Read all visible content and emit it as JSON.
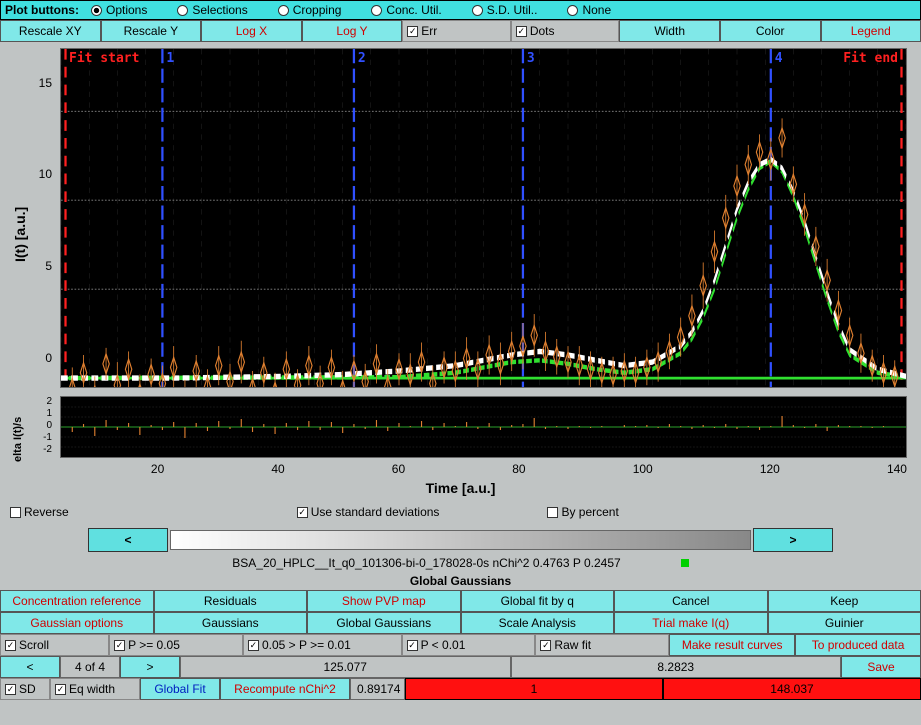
{
  "toolbar1": {
    "label": "Plot buttons:",
    "radios": [
      {
        "label": "Options",
        "selected": true
      },
      {
        "label": "Selections",
        "selected": false
      },
      {
        "label": "Cropping",
        "selected": false
      },
      {
        "label": "Conc. Util.",
        "selected": false
      },
      {
        "label": "S.D. Util..",
        "selected": false
      },
      {
        "label": "None",
        "selected": false
      }
    ]
  },
  "toolbar2": {
    "rescale_xy": "Rescale XY",
    "rescale_y": "Rescale Y",
    "log_x": "Log X",
    "log_y": "Log Y",
    "err": "Err",
    "dots": "Dots",
    "width": "Width",
    "color": "Color",
    "legend": "Legend"
  },
  "chart": {
    "ylabel": "I(t) [a.u.]",
    "yticks": [
      "15",
      "10",
      "5",
      "0"
    ],
    "xticks": [
      "20",
      "40",
      "60",
      "80",
      "100",
      "120",
      "140"
    ],
    "xlabel": "Time [a.u.]",
    "fit_start": "Fit start",
    "fit_end": "Fit end",
    "cursor_labels": [
      "1",
      "2",
      "3",
      "4"
    ]
  },
  "chart2": {
    "ylabel": "elta I(t)/s",
    "yticks": [
      "2",
      "1",
      "0",
      "-1",
      "-2"
    ]
  },
  "mid": {
    "reverse": "Reverse",
    "use_sd": "Use standard deviations",
    "by_percent": "By percent"
  },
  "arrows": {
    "left": "<",
    "right": ">"
  },
  "info": "BSA_20_HPLC__It_q0_101306-bi-0_178028-0s nChi^2 0.4763 P 0.2457",
  "section": "Global Gaussians",
  "btns1": [
    {
      "t": "Concentration reference",
      "c": "red-text"
    },
    {
      "t": "Residuals",
      "c": ""
    },
    {
      "t": "Show PVP map",
      "c": "red-text"
    },
    {
      "t": "Global fit by q",
      "c": ""
    },
    {
      "t": "Cancel",
      "c": ""
    },
    {
      "t": "Keep",
      "c": ""
    }
  ],
  "btns2": [
    {
      "t": "Gaussian options",
      "c": "red-text"
    },
    {
      "t": "Gaussians",
      "c": ""
    },
    {
      "t": "Global Gaussians",
      "c": ""
    },
    {
      "t": "Scale Analysis",
      "c": ""
    },
    {
      "t": "Trial make I(q)",
      "c": "red-text"
    },
    {
      "t": "Guinier",
      "c": ""
    }
  ],
  "filters": {
    "scroll": "Scroll",
    "p1": "P >= 0.05",
    "p2": "0.05 > P >= 0.01",
    "p3": "P < 0.01",
    "raw": "Raw fit",
    "make": "Make result curves",
    "prod": "To produced data"
  },
  "nav": {
    "left": "<",
    "right": ">",
    "idx": "4 of 4",
    "v1": "125.077",
    "v2": "8.2823",
    "save": "Save"
  },
  "bottom": {
    "sd": "SD",
    "eqw": "Eq width",
    "global": "Global Fit",
    "recomp": "Recompute nChi^2",
    "val": "0.89174",
    "red1": "1",
    "red2": "148.037"
  },
  "colors": {
    "data": "#e08030",
    "fit": "#ffffff",
    "gauss": "#30e030",
    "cursor": "#3050ff",
    "bound": "#ff2020"
  },
  "main_data": {
    "x": [
      2,
      4,
      6,
      8,
      10,
      12,
      14,
      16,
      18,
      20,
      22,
      24,
      26,
      28,
      30,
      32,
      34,
      36,
      38,
      40,
      42,
      44,
      46,
      48,
      50,
      52,
      54,
      56,
      58,
      60,
      62,
      64,
      66,
      68,
      70,
      72,
      74,
      76,
      78,
      80,
      82,
      84,
      86,
      88,
      90,
      92,
      94,
      96,
      98,
      100,
      102,
      104,
      106,
      108,
      110,
      112,
      114,
      116,
      118,
      120,
      122,
      124,
      126,
      128,
      130,
      132,
      134,
      136,
      138,
      140,
      142,
      144,
      146,
      148
    ],
    "y": [
      -0.6,
      0.3,
      -1.0,
      0.8,
      -0.4,
      0.5,
      -0.9,
      0.2,
      -0.3,
      0.6,
      -1.2,
      0.4,
      -0.5,
      0.7,
      -0.2,
      0.9,
      -0.6,
      0.3,
      -0.8,
      0.5,
      -0.4,
      0.7,
      -0.3,
      0.6,
      -0.7,
      0.4,
      -0.2,
      0.8,
      -0.5,
      0.5,
      0.2,
      0.9,
      -0.3,
      0.6,
      0.4,
      1.1,
      0.5,
      1.3,
      0.8,
      1.5,
      1.8,
      2.4,
      1.5,
      1.2,
      0.9,
      0.7,
      0.5,
      0.3,
      0.2,
      0.4,
      0.3,
      0.6,
      0.9,
      1.5,
      2.3,
      3.5,
      5.2,
      7.1,
      9.0,
      10.8,
      12.0,
      12.7,
      12.3,
      13.5,
      10.9,
      9.2,
      7.4,
      5.5,
      3.8,
      2.4,
      1.4,
      0.7,
      0.3,
      0.1
    ],
    "err": [
      1.2,
      1.0,
      1.1,
      0.9,
      1.3,
      1.0,
      1.1,
      0.9,
      1.0,
      1.2,
      1.1,
      0.9,
      1.0,
      1.1,
      1.0,
      1.2,
      1.0,
      0.9,
      1.1,
      1.0,
      0.9,
      1.1,
      1.0,
      1.0,
      1.1,
      0.9,
      1.0,
      1.1,
      1.0,
      0.9,
      1.2,
      1.1,
      1.0,
      0.9,
      1.1,
      1.2,
      1.0,
      1.1,
      1.2,
      1.1,
      1.3,
      1.2,
      1.1,
      1.0,
      0.9,
      1.1,
      1.0,
      0.9,
      1.0,
      1.0,
      0.9,
      1.0,
      1.1,
      1.0,
      1.1,
      1.2,
      1.3,
      1.2,
      1.3,
      1.2,
      1.1,
      1.0,
      1.2,
      1.1,
      1.0,
      1.2,
      1.1,
      1.2,
      1.1,
      1.0,
      1.1,
      0.9,
      1.0,
      0.9
    ]
  },
  "fit_curve": {
    "x": [
      0,
      20,
      40,
      50,
      60,
      70,
      75,
      80,
      85,
      90,
      95,
      100,
      105,
      110,
      112,
      114,
      116,
      118,
      120,
      122,
      124,
      126,
      128,
      130,
      132,
      134,
      136,
      138,
      140,
      145,
      150
    ],
    "y": [
      0,
      0,
      0.1,
      0.2,
      0.4,
      0.7,
      1.0,
      1.3,
      1.5,
      1.3,
      1.0,
      0.7,
      0.9,
      1.8,
      2.6,
      3.8,
      5.5,
      7.5,
      9.5,
      11.0,
      12.0,
      12.3,
      11.8,
      10.5,
      8.8,
      6.8,
      4.8,
      3.0,
      1.6,
      0.5,
      0.1
    ]
  },
  "gauss_curve": {
    "x": [
      0,
      60,
      70,
      75,
      80,
      85,
      90,
      95,
      100,
      105,
      110,
      112,
      114,
      116,
      118,
      120,
      122,
      124,
      126,
      128,
      130,
      132,
      134,
      136,
      138,
      140,
      145,
      150
    ],
    "y": [
      0,
      0.05,
      0.3,
      0.6,
      0.9,
      1.0,
      0.8,
      0.5,
      0.3,
      0.5,
      1.4,
      2.2,
      3.4,
      5.0,
      7.0,
      9.0,
      10.6,
      11.8,
      12.2,
      11.6,
      10.2,
      8.4,
      6.4,
      4.4,
      2.6,
      1.3,
      0.3,
      0.05
    ]
  },
  "cursors": [
    18,
    52,
    82,
    126
  ],
  "resid": {
    "x": [
      2,
      4,
      6,
      8,
      10,
      12,
      14,
      16,
      18,
      20,
      22,
      24,
      26,
      28,
      30,
      32,
      34,
      36,
      38,
      40,
      42,
      44,
      46,
      48,
      50,
      52,
      54,
      56,
      58,
      60,
      62,
      64,
      66,
      68,
      70,
      72,
      74,
      76,
      78,
      80,
      82,
      84,
      86,
      88,
      90,
      92,
      94,
      96,
      98,
      100,
      102,
      104,
      106,
      108,
      110,
      112,
      114,
      116,
      118,
      120,
      122,
      124,
      126,
      128,
      130,
      132,
      134,
      136,
      138,
      140,
      142,
      144,
      146,
      148
    ],
    "y": [
      -0.5,
      0.3,
      -0.9,
      0.7,
      -0.3,
      0.4,
      -0.8,
      0.2,
      -0.3,
      0.5,
      -1.1,
      0.4,
      -0.4,
      0.6,
      -0.2,
      0.8,
      -0.5,
      0.3,
      -0.7,
      0.4,
      -0.3,
      0.6,
      -0.3,
      0.5,
      -0.6,
      0.3,
      -0.2,
      0.7,
      -0.4,
      0.4,
      0.1,
      0.6,
      -0.3,
      0.4,
      0.1,
      0.5,
      -0.2,
      0.4,
      -0.3,
      0.2,
      0.3,
      0.9,
      -0.2,
      0.1,
      -0.2,
      0.1,
      -0.1,
      0.1,
      0.0,
      0.2,
      0.1,
      0.2,
      -0.1,
      0.3,
      0.1,
      -0.2,
      0.2,
      -0.1,
      0.3,
      -0.2,
      0.1,
      -0.3,
      0.1,
      1.1,
      0.2,
      -0.1,
      0.3,
      -0.4,
      0.2,
      0.1,
      0.1,
      -0.1,
      0.1,
      0.0
    ]
  }
}
